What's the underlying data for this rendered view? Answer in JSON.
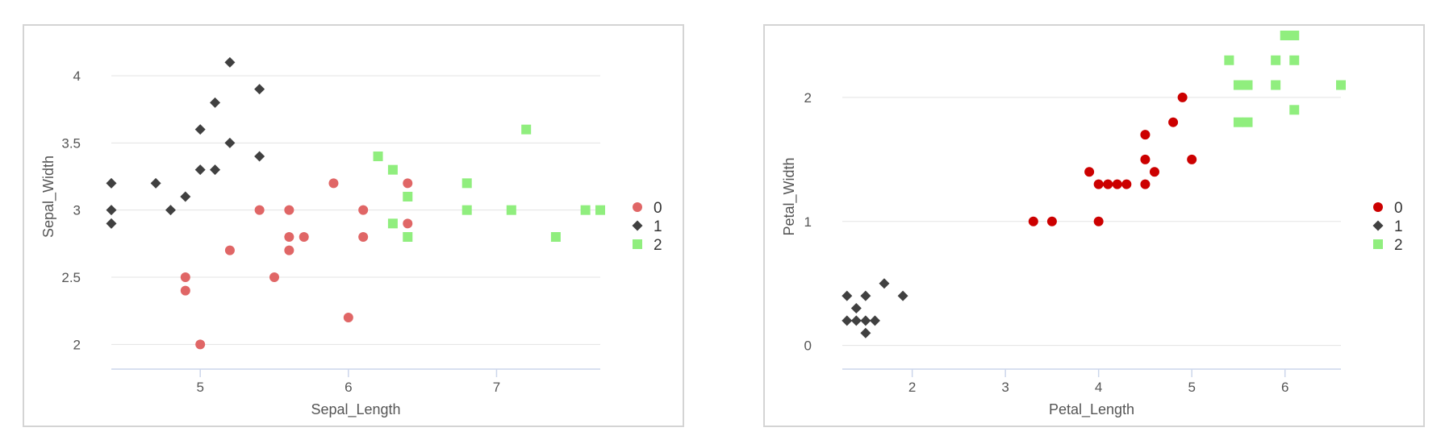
{
  "chart_data": [
    {
      "type": "scatter",
      "xlabel": "Sepal_Length",
      "ylabel": "Sepal_Width",
      "xlim": [
        4.4,
        7.7
      ],
      "ylim": [
        1.9,
        4.3
      ],
      "xticks": [
        5,
        6,
        7
      ],
      "yticks": [
        2,
        2.5,
        3,
        3.5,
        4
      ],
      "grid": "horizontal",
      "legend_position": "right",
      "series": [
        {
          "name": "0",
          "marker": "circle",
          "color": "#e06666",
          "points": [
            {
              "x": 4.9,
              "y": 2.5
            },
            {
              "x": 4.9,
              "y": 2.4
            },
            {
              "x": 5.0,
              "y": 2.0
            },
            {
              "x": 5.2,
              "y": 2.7
            },
            {
              "x": 5.4,
              "y": 3.0
            },
            {
              "x": 5.5,
              "y": 2.5
            },
            {
              "x": 5.6,
              "y": 3.0
            },
            {
              "x": 5.6,
              "y": 2.8
            },
            {
              "x": 5.6,
              "y": 2.7
            },
            {
              "x": 5.7,
              "y": 2.8
            },
            {
              "x": 5.9,
              "y": 3.2
            },
            {
              "x": 6.0,
              "y": 2.2
            },
            {
              "x": 6.1,
              "y": 3.0
            },
            {
              "x": 6.1,
              "y": 2.8
            },
            {
              "x": 6.4,
              "y": 3.2
            },
            {
              "x": 6.4,
              "y": 2.9
            }
          ]
        },
        {
          "name": "1",
          "marker": "diamond",
          "color": "#404040",
          "points": [
            {
              "x": 4.4,
              "y": 3.2
            },
            {
              "x": 4.4,
              "y": 3.0
            },
            {
              "x": 4.4,
              "y": 2.9
            },
            {
              "x": 4.7,
              "y": 3.2
            },
            {
              "x": 4.8,
              "y": 3.0
            },
            {
              "x": 4.9,
              "y": 3.1
            },
            {
              "x": 5.0,
              "y": 3.6
            },
            {
              "x": 5.0,
              "y": 3.3
            },
            {
              "x": 5.1,
              "y": 3.8
            },
            {
              "x": 5.1,
              "y": 3.3
            },
            {
              "x": 5.2,
              "y": 4.1
            },
            {
              "x": 5.2,
              "y": 3.5
            },
            {
              "x": 5.4,
              "y": 3.9
            },
            {
              "x": 5.4,
              "y": 3.4
            }
          ]
        },
        {
          "name": "2",
          "marker": "square",
          "color": "#90ee7e",
          "points": [
            {
              "x": 6.2,
              "y": 3.4
            },
            {
              "x": 6.3,
              "y": 3.3
            },
            {
              "x": 6.3,
              "y": 2.9
            },
            {
              "x": 6.4,
              "y": 3.1
            },
            {
              "x": 6.4,
              "y": 2.8
            },
            {
              "x": 6.8,
              "y": 3.2
            },
            {
              "x": 6.8,
              "y": 3.0
            },
            {
              "x": 7.1,
              "y": 3.0
            },
            {
              "x": 7.2,
              "y": 3.6
            },
            {
              "x": 7.4,
              "y": 2.8
            },
            {
              "x": 7.6,
              "y": 3.0
            },
            {
              "x": 7.7,
              "y": 3.0
            }
          ]
        }
      ]
    },
    {
      "type": "scatter",
      "xlabel": "Petal_Length",
      "ylabel": "Petal_Width",
      "xlim": [
        1.25,
        6.6
      ],
      "ylim": [
        -0.1,
        2.5
      ],
      "xticks": [
        2,
        3,
        4,
        5,
        6
      ],
      "yticks": [
        0,
        1,
        2
      ],
      "grid": "horizontal",
      "legend_position": "right",
      "series": [
        {
          "name": "0",
          "marker": "circle",
          "color": "#cc0000",
          "points": [
            {
              "x": 3.3,
              "y": 1.0
            },
            {
              "x": 3.5,
              "y": 1.0
            },
            {
              "x": 3.9,
              "y": 1.4
            },
            {
              "x": 4.0,
              "y": 1.3
            },
            {
              "x": 4.0,
              "y": 1.0
            },
            {
              "x": 4.1,
              "y": 1.3
            },
            {
              "x": 4.2,
              "y": 1.3
            },
            {
              "x": 4.3,
              "y": 1.3
            },
            {
              "x": 4.5,
              "y": 1.7
            },
            {
              "x": 4.5,
              "y": 1.5
            },
            {
              "x": 4.5,
              "y": 1.3
            },
            {
              "x": 4.6,
              "y": 1.4
            },
            {
              "x": 4.8,
              "y": 1.8
            },
            {
              "x": 4.9,
              "y": 2.0
            },
            {
              "x": 5.0,
              "y": 1.5
            }
          ]
        },
        {
          "name": "1",
          "marker": "diamond",
          "color": "#404040",
          "points": [
            {
              "x": 1.3,
              "y": 0.4
            },
            {
              "x": 1.3,
              "y": 0.2
            },
            {
              "x": 1.4,
              "y": 0.3
            },
            {
              "x": 1.4,
              "y": 0.2
            },
            {
              "x": 1.5,
              "y": 0.4
            },
            {
              "x": 1.5,
              "y": 0.2
            },
            {
              "x": 1.5,
              "y": 0.1
            },
            {
              "x": 1.6,
              "y": 0.2
            },
            {
              "x": 1.7,
              "y": 0.5
            },
            {
              "x": 1.9,
              "y": 0.4
            }
          ]
        },
        {
          "name": "2",
          "marker": "square",
          "color": "#90ee7e",
          "points": [
            {
              "x": 5.4,
              "y": 2.3
            },
            {
              "x": 5.5,
              "y": 2.1
            },
            {
              "x": 5.5,
              "y": 1.8
            },
            {
              "x": 5.6,
              "y": 2.1
            },
            {
              "x": 5.6,
              "y": 1.8
            },
            {
              "x": 5.9,
              "y": 2.3
            },
            {
              "x": 5.9,
              "y": 2.1
            },
            {
              "x": 6.0,
              "y": 2.5
            },
            {
              "x": 6.1,
              "y": 2.5
            },
            {
              "x": 6.1,
              "y": 2.3
            },
            {
              "x": 6.1,
              "y": 1.9
            },
            {
              "x": 6.6,
              "y": 2.1
            }
          ]
        }
      ]
    }
  ]
}
